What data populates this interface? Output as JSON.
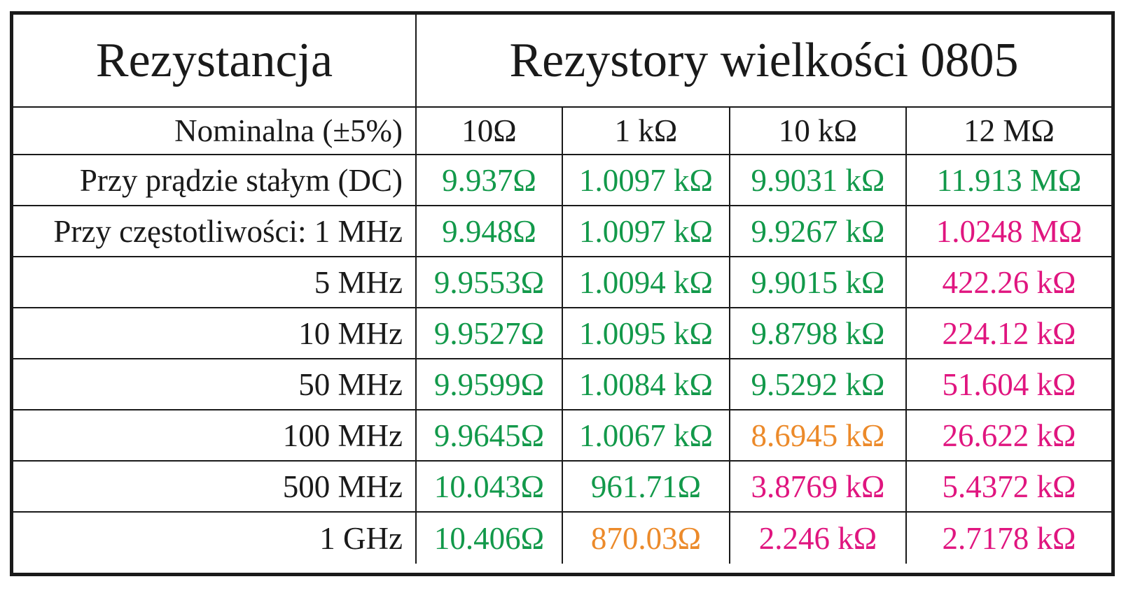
{
  "header": {
    "left_title": "Rezystancja",
    "right_title": "Rezystory wielkości 0805"
  },
  "nominal_row": {
    "label": "Nominalna (±5%)",
    "values": [
      "10Ω",
      "1 kΩ",
      "10 kΩ",
      "12 MΩ"
    ]
  },
  "colors": {
    "green": "#12994a",
    "pink": "#e0157f",
    "orange": "#ec8a2a"
  },
  "rows": [
    {
      "label": "Przy prądzie stałym (DC)",
      "cells": [
        {
          "text": "9.937Ω",
          "color": "green"
        },
        {
          "text": "1.0097 kΩ",
          "color": "green"
        },
        {
          "text": "9.9031 kΩ",
          "color": "green"
        },
        {
          "text": "11.913 MΩ",
          "color": "green"
        }
      ]
    },
    {
      "label": "Przy częstotliwości:  1 MHz",
      "cells": [
        {
          "text": "9.948Ω",
          "color": "green"
        },
        {
          "text": "1.0097 kΩ",
          "color": "green"
        },
        {
          "text": "9.9267 kΩ",
          "color": "green"
        },
        {
          "text": "1.0248 MΩ",
          "color": "pink"
        }
      ]
    },
    {
      "label": "5 MHz",
      "cells": [
        {
          "text": "9.9553Ω",
          "color": "green"
        },
        {
          "text": "1.0094 kΩ",
          "color": "green"
        },
        {
          "text": "9.9015 kΩ",
          "color": "green"
        },
        {
          "text": "422.26 kΩ",
          "color": "pink"
        }
      ]
    },
    {
      "label": "10 MHz",
      "cells": [
        {
          "text": "9.9527Ω",
          "color": "green"
        },
        {
          "text": "1.0095 kΩ",
          "color": "green"
        },
        {
          "text": "9.8798 kΩ",
          "color": "green"
        },
        {
          "text": "224.12 kΩ",
          "color": "pink"
        }
      ]
    },
    {
      "label": "50 MHz",
      "cells": [
        {
          "text": "9.9599Ω",
          "color": "green"
        },
        {
          "text": "1.0084 kΩ",
          "color": "green"
        },
        {
          "text": "9.5292 kΩ",
          "color": "green"
        },
        {
          "text": "51.604 kΩ",
          "color": "pink"
        }
      ]
    },
    {
      "label": "100 MHz",
      "cells": [
        {
          "text": "9.9645Ω",
          "color": "green"
        },
        {
          "text": "1.0067 kΩ",
          "color": "green"
        },
        {
          "text": "8.6945 kΩ",
          "color": "orange"
        },
        {
          "text": "26.622 kΩ",
          "color": "pink"
        }
      ]
    },
    {
      "label": "500 MHz",
      "cells": [
        {
          "text": "10.043Ω",
          "color": "green"
        },
        {
          "text": "961.71Ω",
          "color": "green"
        },
        {
          "text": "3.8769 kΩ",
          "color": "pink"
        },
        {
          "text": "5.4372 kΩ",
          "color": "pink"
        }
      ]
    },
    {
      "label": "1 GHz",
      "cells": [
        {
          "text": "10.406Ω",
          "color": "green"
        },
        {
          "text": "870.03Ω",
          "color": "orange"
        },
        {
          "text": "2.246 kΩ",
          "color": "pink"
        },
        {
          "text": "2.7178 kΩ",
          "color": "pink"
        }
      ]
    }
  ]
}
